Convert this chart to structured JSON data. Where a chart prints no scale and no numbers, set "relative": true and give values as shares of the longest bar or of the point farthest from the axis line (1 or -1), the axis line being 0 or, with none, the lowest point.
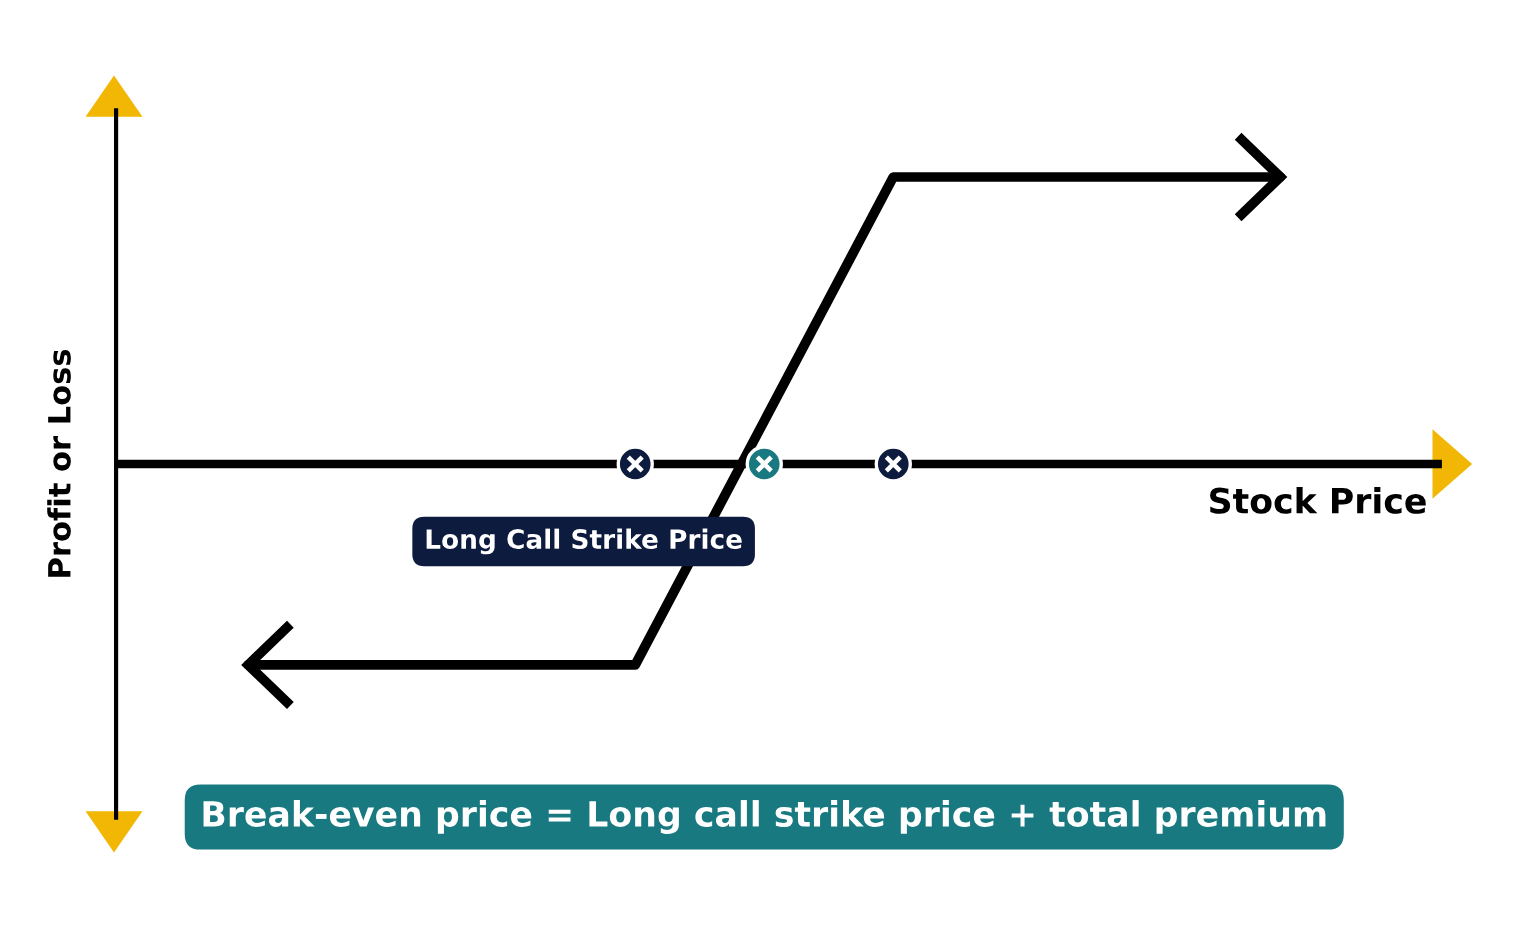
{
  "chart_data": {
    "type": "line",
    "relative": true,
    "ylabel": "Profit or Loss",
    "xlabel": "Stock Price",
    "categories": [
      null,
      null,
      null,
      null,
      null,
      null,
      null,
      null,
      null
    ],
    "series": [
      {
        "color": "#000000",
        "values": [
          -0.7,
          -0.7,
          -0.7,
          -0.7,
          0.15,
          1,
          1,
          1,
          1
        ]
      }
    ],
    "annotations": [
      "Long Call Strike Price",
      "Break-even price = Long call strike price + total premium"
    ],
    "marker": "none",
    "line_style": "solid",
    "grid": false,
    "legend": false
  }
}
